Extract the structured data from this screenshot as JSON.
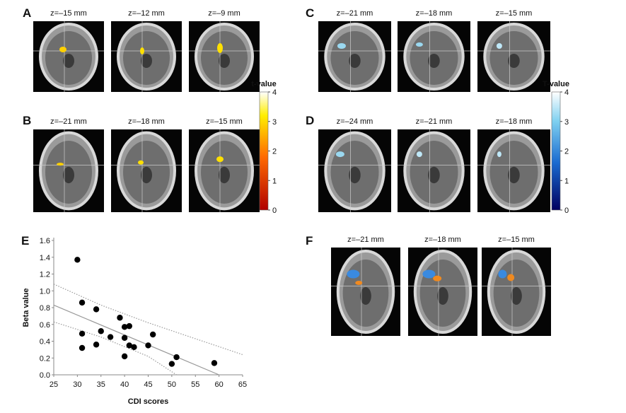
{
  "panels": [
    {
      "label": "A",
      "slices": [
        "z=–15 mm",
        "z=–12 mm",
        "z=–9 mm"
      ]
    },
    {
      "label": "B",
      "slices": [
        "z=–21 mm",
        "z=–18 mm",
        "z=–15 mm"
      ]
    },
    {
      "label": "C",
      "slices": [
        "z=–21 mm",
        "z=–18 mm",
        "z=–15 mm"
      ]
    },
    {
      "label": "D",
      "slices": [
        "z=–24 mm",
        "z=–21 mm",
        "z=–18 mm"
      ]
    },
    {
      "label": "F",
      "slices": [
        "z=–21 mm",
        "z=–18 mm",
        "z=–15 mm"
      ]
    }
  ],
  "colorbars": [
    {
      "title": "t-value",
      "ticks": [
        0,
        1,
        2,
        3,
        4
      ]
    },
    {
      "title": "T-value",
      "ticks": [
        0,
        1,
        2,
        3,
        4
      ]
    }
  ],
  "chart_data": {
    "type": "scatter",
    "label": "E",
    "x_label": "CDI scores",
    "y_label": "Beta value",
    "x": [
      30,
      31,
      31,
      31,
      34,
      34,
      35,
      37,
      39,
      40,
      40,
      40,
      41,
      41,
      42,
      45,
      46,
      50,
      51,
      59
    ],
    "values": [
      1.37,
      0.86,
      0.49,
      0.32,
      0.78,
      0.36,
      0.52,
      0.45,
      0.68,
      0.57,
      0.44,
      0.22,
      0.58,
      0.35,
      0.33,
      0.35,
      0.48,
      0.13,
      0.21,
      0.14
    ],
    "color": "#000000",
    "lines": [
      {
        "style": "solid",
        "x": [
          25,
          60
        ],
        "values": [
          0.83,
          0
        ]
      },
      {
        "style": "dotted",
        "x": [
          25,
          35,
          45,
          55,
          65
        ],
        "values": [
          1.08,
          0.83,
          0.62,
          0.43,
          0.24
        ]
      },
      {
        "style": "dotted",
        "x": [
          25,
          35,
          45,
          51
        ],
        "values": [
          0.63,
          0.45,
          0.22,
          0
        ]
      }
    ],
    "xlim": [
      25,
      65
    ],
    "xticks": [
      25,
      30,
      35,
      40,
      45,
      50,
      55,
      60,
      65
    ],
    "ylim": [
      0,
      1.6
    ],
    "yticks": [
      {
        "value": 0,
        "label": "0.0"
      },
      0.2,
      0.4,
      0.6,
      0.8,
      {
        "value": 1,
        "label": "1.0"
      },
      1.2,
      1.4,
      1.6
    ]
  }
}
